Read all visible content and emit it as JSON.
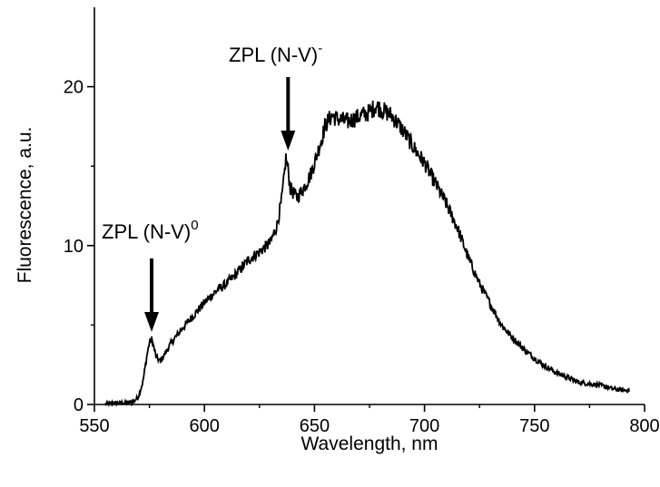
{
  "chart_data": {
    "type": "line",
    "xlabel": "Wavelength, nm",
    "ylabel": "Fluorescence, a.u.",
    "xlim": [
      550,
      800
    ],
    "ylim": [
      0,
      25
    ],
    "xticks": [
      "550",
      "600",
      "650",
      "700",
      "750",
      "800"
    ],
    "yticks": [
      "0",
      "10",
      "20"
    ],
    "grid": false,
    "series": [
      {
        "x": [
          555,
          560,
          565,
          568,
          570,
          572,
          573,
          574,
          575,
          576,
          577,
          578,
          580,
          585,
          590,
          595,
          600,
          605,
          610,
          615,
          620,
          625,
          630,
          633,
          635,
          636,
          637,
          638,
          639,
          640,
          642,
          645,
          648,
          650,
          653,
          655,
          658,
          660,
          665,
          670,
          675,
          678,
          680,
          685,
          690,
          695,
          700,
          705,
          710,
          715,
          720,
          725,
          730,
          735,
          740,
          745,
          750,
          755,
          760,
          765,
          770,
          775,
          780,
          785,
          790,
          793
        ],
        "y": [
          0.05,
          0.1,
          0.1,
          0.2,
          0.5,
          1.4,
          2.3,
          3.2,
          3.9,
          4.1,
          3.6,
          3.0,
          2.7,
          3.9,
          4.8,
          5.6,
          6.4,
          7.1,
          7.6,
          8.3,
          9.1,
          9.6,
          10.2,
          11.3,
          12.8,
          14.0,
          15.5,
          14.8,
          13.6,
          13.4,
          13.0,
          13.6,
          14.4,
          15.2,
          16.6,
          17.6,
          18.2,
          18.0,
          17.8,
          18.1,
          18.4,
          18.8,
          18.6,
          18.2,
          17.3,
          16.2,
          15.2,
          13.9,
          12.6,
          11.1,
          9.2,
          7.6,
          6.3,
          5.0,
          4.2,
          3.5,
          2.9,
          2.4,
          2.0,
          1.7,
          1.4,
          1.3,
          1.2,
          1.0,
          0.9,
          0.9
        ]
      }
    ],
    "annotations": [
      {
        "text": "ZPL (N-V)",
        "superscript": "0",
        "x": 576
      },
      {
        "text": "ZPL (N-V)",
        "superscript": "-",
        "x": 638
      }
    ],
    "color": "#000000"
  }
}
